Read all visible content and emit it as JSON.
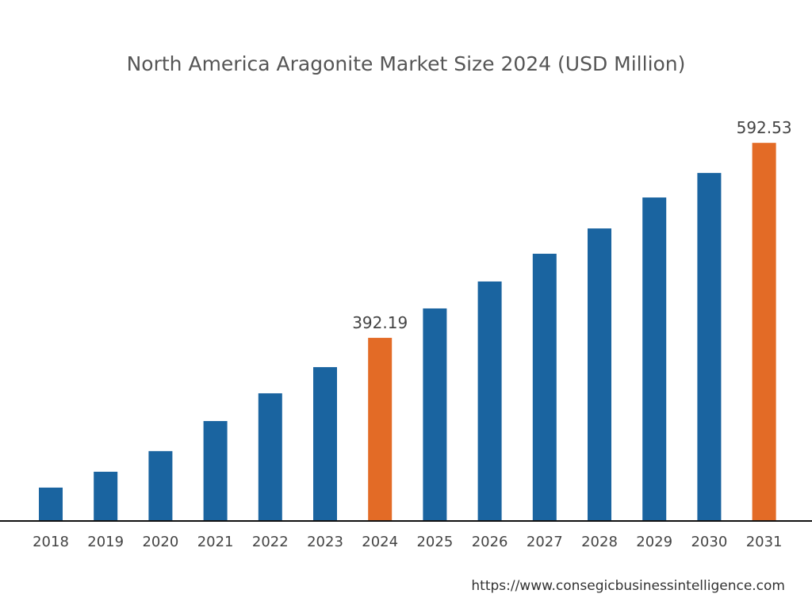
{
  "chart_data": {
    "type": "bar",
    "title": "North America Aragonite Market Size 2024 (USD Million)",
    "xlabel": "",
    "ylabel": "",
    "categories": [
      "2018",
      "2019",
      "2020",
      "2021",
      "2022",
      "2023",
      "2024",
      "2025",
      "2026",
      "2027",
      "2028",
      "2029",
      "2030",
      "2031"
    ],
    "values": [
      238.3,
      254.6,
      275.8,
      306.7,
      335.2,
      362.1,
      392.19,
      422.4,
      450.1,
      478.6,
      504.6,
      536.4,
      561.6,
      592.53
    ],
    "data_labels": {
      "2024": "392.19",
      "2031": "592.53"
    },
    "highlight": [
      "2024",
      "2031"
    ],
    "ylim": [
      204,
      600
    ],
    "grid": false,
    "y_axis_shown": false,
    "colors": {
      "bar": "#1a64a0",
      "highlight": "#e36b26",
      "axis": "#111111"
    }
  },
  "source": "https://www.consegicbusinessintelligence.com"
}
